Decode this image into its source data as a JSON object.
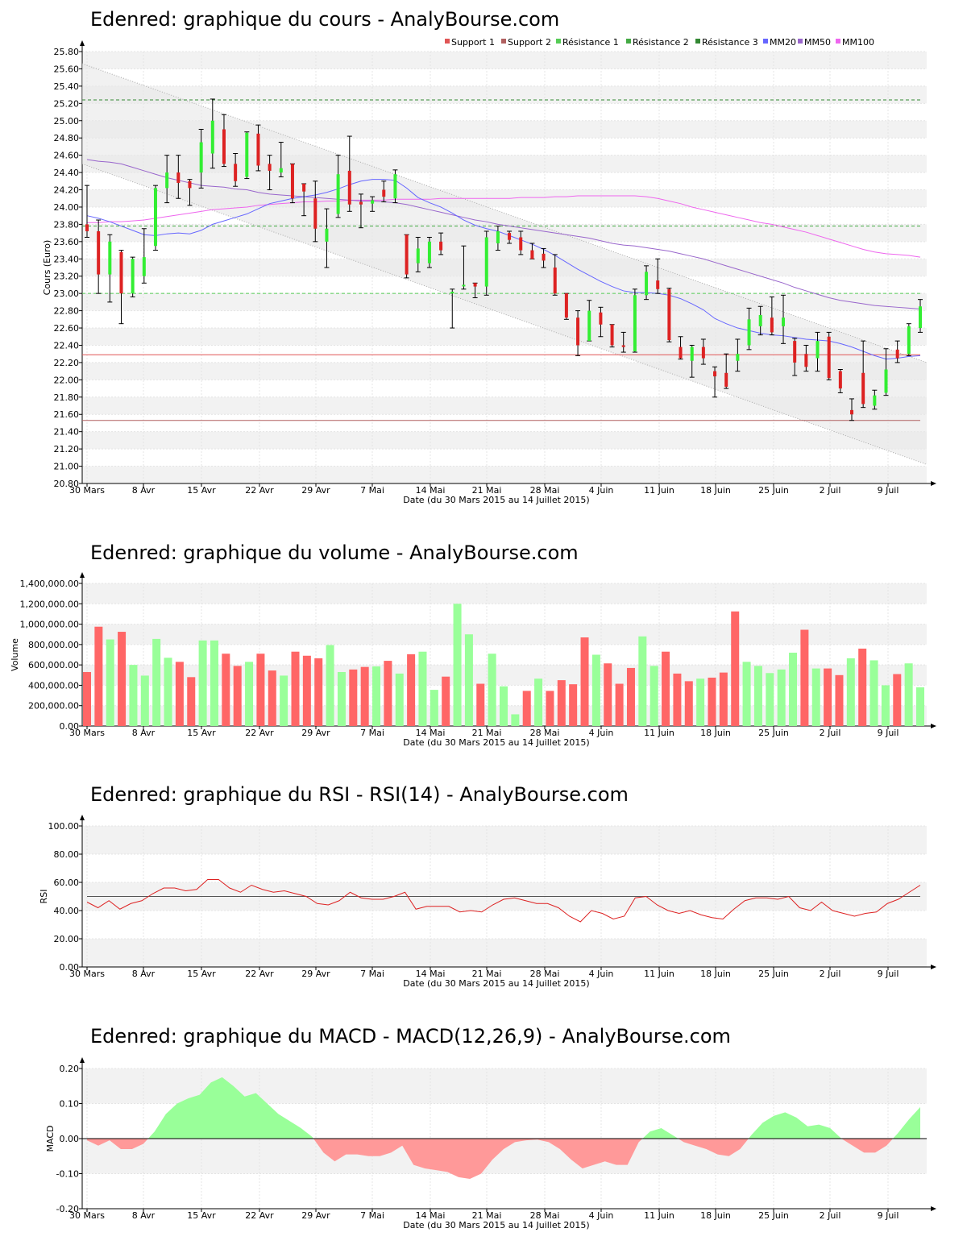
{
  "colors": {
    "up": "#33ee33",
    "down": "#dd2222",
    "vol_up": "#99ff99",
    "vol_down": "#ff6666",
    "mm20": "#6666ff",
    "mm50": "#9966cc",
    "mm100": "#ee66ee",
    "support1": "#e05555",
    "support2": "#b06060",
    "res1": "#55cc55",
    "res2": "#44aa44",
    "res3": "#338833",
    "rsi": "#dd2222",
    "macd_pos": "#99ff99",
    "macd_neg": "#ff9999"
  },
  "x_axis": {
    "ticks": [
      "30 Mars",
      "8 Avr",
      "15 Avr",
      "22 Avr",
      "29 Avr",
      "7 Mai",
      "14 Mai",
      "21 Mai",
      "28 Mai",
      "4 Juin",
      "11 Juin",
      "18 Juin",
      "25 Juin",
      "2 Juil",
      "9 Juil"
    ],
    "label": "Date (du 30 Mars 2015 au 14 Juillet 2015)"
  },
  "chart_data": [
    {
      "type": "candlestick",
      "title": "Edenred: graphique du cours - AnalyBourse.com",
      "ylabel": "Cours (Euro)",
      "ylim": [
        20.8,
        25.8
      ],
      "yticks": [
        "25.80",
        "25.60",
        "25.40",
        "25.20",
        "25.00",
        "24.80",
        "24.60",
        "24.40",
        "24.20",
        "24.00",
        "23.80",
        "23.60",
        "23.40",
        "23.20",
        "23.00",
        "22.80",
        "22.60",
        "22.40",
        "22.20",
        "22.00",
        "21.80",
        "21.60",
        "21.40",
        "21.20",
        "21.00",
        "20.80"
      ],
      "legend": [
        "Support 1",
        "Support 2",
        "Résistance 1",
        "Résistance 2",
        "Résistance 3",
        "MM20",
        "MM50",
        "MM100"
      ],
      "levels": {
        "support1": 22.29,
        "support2": 21.53,
        "resistance1": 23.0,
        "resistance2": 23.78,
        "resistance3": 25.24
      },
      "channel": {
        "upper": [
          25.66,
          22.2
        ],
        "lower": [
          24.5,
          21.02
        ]
      },
      "candles": [
        [
          23.8,
          23.72,
          24.25,
          23.65
        ],
        [
          23.72,
          23.22,
          23.85,
          23.0
        ],
        [
          23.22,
          23.6,
          23.68,
          22.9
        ],
        [
          23.48,
          23.0,
          23.5,
          22.65
        ],
        [
          23.0,
          23.4,
          23.42,
          22.96
        ],
        [
          23.2,
          23.42,
          23.75,
          23.12
        ],
        [
          23.55,
          24.22,
          24.25,
          23.5
        ],
        [
          24.22,
          24.4,
          24.6,
          24.05
        ],
        [
          24.4,
          24.28,
          24.6,
          24.1
        ],
        [
          24.3,
          24.22,
          24.32,
          24.02
        ],
        [
          24.4,
          24.75,
          24.9,
          24.22
        ],
        [
          24.62,
          25.0,
          25.25,
          24.45
        ],
        [
          24.9,
          24.5,
          25.07,
          24.47
        ],
        [
          24.5,
          24.3,
          24.62,
          24.24
        ],
        [
          24.35,
          24.86,
          24.87,
          24.33
        ],
        [
          24.85,
          24.48,
          24.95,
          24.42
        ],
        [
          24.5,
          24.42,
          24.6,
          24.2
        ],
        [
          24.4,
          24.45,
          24.75,
          24.35
        ],
        [
          24.5,
          24.1,
          24.5,
          24.05
        ],
        [
          24.27,
          24.18,
          24.27,
          23.9
        ],
        [
          24.1,
          23.75,
          24.3,
          23.6
        ],
        [
          23.6,
          23.75,
          23.98,
          23.3
        ],
        [
          23.92,
          24.38,
          24.6,
          23.88
        ],
        [
          24.42,
          24.03,
          24.82,
          23.95
        ],
        [
          24.06,
          24.03,
          24.15,
          23.76
        ],
        [
          24.04,
          24.08,
          24.12,
          23.95
        ],
        [
          24.2,
          24.12,
          24.3,
          24.06
        ],
        [
          24.1,
          24.38,
          24.43,
          24.05
        ],
        [
          23.68,
          23.22,
          23.68,
          23.18
        ],
        [
          23.35,
          23.52,
          23.65,
          23.25
        ],
        [
          23.35,
          23.6,
          23.65,
          23.3
        ],
        [
          23.6,
          23.5,
          23.7,
          23.45
        ],
        [
          23.0,
          23.02,
          23.05,
          22.6
        ],
        [
          23.1,
          23.1,
          23.55,
          23.05
        ],
        [
          23.12,
          23.08,
          23.12,
          22.95
        ],
        [
          23.08,
          23.65,
          23.72,
          22.98
        ],
        [
          23.58,
          23.72,
          23.78,
          23.5
        ],
        [
          23.7,
          23.62,
          23.72,
          23.58
        ],
        [
          23.65,
          23.5,
          23.72,
          23.45
        ],
        [
          23.5,
          23.4,
          23.58,
          23.4
        ],
        [
          23.46,
          23.38,
          23.52,
          23.3
        ],
        [
          23.3,
          23.0,
          23.45,
          22.98
        ],
        [
          23.0,
          22.72,
          23.0,
          22.7
        ],
        [
          22.72,
          22.4,
          22.8,
          22.28
        ],
        [
          22.45,
          22.8,
          22.92,
          22.45
        ],
        [
          22.78,
          22.64,
          22.84,
          22.5
        ],
        [
          22.64,
          22.4,
          22.64,
          22.38
        ],
        [
          22.4,
          22.38,
          22.55,
          22.32
        ],
        [
          22.33,
          22.98,
          23.05,
          22.32
        ],
        [
          22.98,
          23.25,
          23.32,
          22.93
        ],
        [
          23.15,
          23.05,
          23.4,
          23.0
        ],
        [
          23.05,
          22.46,
          23.06,
          22.44
        ],
        [
          22.38,
          22.25,
          22.5,
          22.24
        ],
        [
          22.22,
          22.38,
          22.4,
          22.03
        ],
        [
          22.38,
          22.25,
          22.47,
          22.18
        ],
        [
          22.1,
          22.04,
          22.15,
          21.8
        ],
        [
          22.08,
          21.92,
          22.3,
          21.9
        ],
        [
          22.22,
          22.3,
          22.47,
          22.1
        ],
        [
          22.4,
          22.7,
          22.83,
          22.35
        ],
        [
          22.62,
          22.75,
          22.85,
          22.52
        ],
        [
          22.72,
          22.55,
          22.96,
          22.52
        ],
        [
          22.62,
          22.72,
          22.98,
          22.42
        ],
        [
          22.45,
          22.2,
          22.48,
          22.05
        ],
        [
          22.3,
          22.15,
          22.4,
          22.1
        ],
        [
          22.25,
          22.45,
          22.55,
          22.1
        ],
        [
          22.5,
          22.02,
          22.55,
          22.0
        ],
        [
          22.1,
          21.9,
          22.12,
          21.85
        ],
        [
          21.65,
          21.6,
          21.78,
          21.53
        ],
        [
          22.08,
          21.72,
          22.45,
          21.68
        ],
        [
          21.7,
          21.82,
          21.88,
          21.66
        ],
        [
          21.85,
          22.12,
          22.36,
          21.82
        ],
        [
          22.35,
          22.25,
          22.45,
          22.2
        ],
        [
          22.3,
          22.62,
          22.65,
          22.28
        ],
        [
          22.6,
          22.85,
          22.93,
          22.55
        ]
      ],
      "mm20": [
        23.9,
        23.87,
        23.83,
        23.78,
        23.73,
        23.68,
        23.67,
        23.69,
        23.7,
        23.69,
        23.73,
        23.8,
        23.84,
        23.88,
        23.92,
        23.98,
        24.04,
        24.07,
        24.1,
        24.12,
        24.14,
        24.17,
        24.21,
        24.26,
        24.3,
        24.32,
        24.32,
        24.31,
        24.22,
        24.11,
        24.05,
        24.0,
        23.93,
        23.85,
        23.79,
        23.75,
        23.72,
        23.67,
        23.62,
        23.57,
        23.51,
        23.44,
        23.36,
        23.28,
        23.21,
        23.14,
        23.08,
        23.03,
        23.01,
        23.01,
        23.0,
        22.98,
        22.94,
        22.88,
        22.81,
        22.71,
        22.65,
        22.6,
        22.57,
        22.54,
        22.52,
        22.51,
        22.49,
        22.47,
        22.46,
        22.45,
        22.42,
        22.38,
        22.33,
        22.28,
        22.24,
        22.25,
        22.27,
        22.28
      ],
      "mm50": [
        24.55,
        24.53,
        24.52,
        24.5,
        24.46,
        24.42,
        24.38,
        24.34,
        24.31,
        24.28,
        24.25,
        24.24,
        24.23,
        24.21,
        24.2,
        24.17,
        24.15,
        24.14,
        24.13,
        24.12,
        24.11,
        24.1,
        24.09,
        24.08,
        24.07,
        24.07,
        24.06,
        24.05,
        24.03,
        24.0,
        23.97,
        23.94,
        23.91,
        23.88,
        23.85,
        23.83,
        23.8,
        23.78,
        23.76,
        23.74,
        23.72,
        23.7,
        23.68,
        23.66,
        23.64,
        23.61,
        23.58,
        23.56,
        23.55,
        23.53,
        23.51,
        23.49,
        23.46,
        23.43,
        23.4,
        23.36,
        23.32,
        23.28,
        23.24,
        23.2,
        23.16,
        23.12,
        23.07,
        23.03,
        22.99,
        22.95,
        22.92,
        22.9,
        22.88,
        22.86,
        22.85,
        22.84,
        22.83,
        22.82
      ],
      "mm100": [
        23.82,
        23.82,
        23.83,
        23.83,
        23.84,
        23.85,
        23.87,
        23.89,
        23.91,
        23.93,
        23.95,
        23.97,
        23.98,
        23.99,
        24.0,
        24.02,
        24.03,
        24.04,
        24.05,
        24.06,
        24.06,
        24.07,
        24.07,
        24.08,
        24.08,
        24.08,
        24.08,
        24.09,
        24.09,
        24.09,
        24.09,
        24.1,
        24.1,
        24.1,
        24.1,
        24.1,
        24.1,
        24.1,
        24.11,
        24.11,
        24.11,
        24.12,
        24.12,
        24.13,
        24.13,
        24.13,
        24.13,
        24.13,
        24.13,
        24.12,
        24.1,
        24.07,
        24.04,
        24.0,
        23.97,
        23.94,
        23.91,
        23.88,
        23.85,
        23.82,
        23.8,
        23.77,
        23.74,
        23.71,
        23.67,
        23.63,
        23.59,
        23.55,
        23.51,
        23.48,
        23.46,
        23.45,
        23.44,
        23.42
      ]
    },
    {
      "type": "bar",
      "title": "Edenred: graphique du volume - AnalyBourse.com",
      "ylabel": "Volume",
      "ylim": [
        0,
        1400000
      ],
      "yticks": [
        "1,400,000.00",
        "1,200,000.00",
        "1,000,000.00",
        "800,000.00",
        "600,000.00",
        "400,000.00",
        "200,000.00",
        "0.00"
      ],
      "values": [
        530000,
        975000,
        850000,
        925000,
        600000,
        495000,
        855000,
        670000,
        630000,
        480000,
        840000,
        840000,
        710000,
        590000,
        630000,
        710000,
        545000,
        495000,
        730000,
        690000,
        665000,
        795000,
        530000,
        555000,
        580000,
        585000,
        640000,
        515000,
        705000,
        730000,
        355000,
        485000,
        1200000,
        900000,
        415000,
        710000,
        390000,
        115000,
        345000,
        465000,
        345000,
        450000,
        410000,
        870000,
        700000,
        615000,
        415000,
        570000,
        880000,
        590000,
        730000,
        515000,
        440000,
        465000,
        475000,
        525000,
        1125000,
        630000,
        590000,
        520000,
        555000,
        720000,
        945000,
        565000,
        565000,
        500000,
        665000,
        760000,
        645000,
        400000,
        510000,
        615000,
        380000
      ],
      "up": [
        false,
        false,
        true,
        false,
        true,
        true,
        true,
        true,
        false,
        false,
        true,
        true,
        false,
        false,
        true,
        false,
        false,
        true,
        false,
        false,
        false,
        true,
        true,
        false,
        false,
        true,
        false,
        true,
        false,
        true,
        true,
        false,
        true,
        true,
        false,
        true,
        true,
        true,
        false,
        true,
        false,
        false,
        false,
        false,
        true,
        false,
        false,
        false,
        true,
        true,
        false,
        false,
        false,
        true,
        false,
        false,
        false,
        true,
        true,
        true,
        true,
        true,
        false,
        true,
        false,
        false,
        true,
        false,
        true,
        true,
        false,
        true,
        true
      ]
    },
    {
      "type": "line",
      "title": "Edenred: graphique du RSI - RSI(14) - AnalyBourse.com",
      "ylabel": "RSI",
      "ylim": [
        0,
        100
      ],
      "yticks": [
        "100.00",
        "80.00",
        "60.00",
        "40.00",
        "20.00",
        "0.00"
      ],
      "reference": 50,
      "values": [
        46,
        42,
        47,
        41,
        45,
        47,
        52,
        56,
        56,
        54,
        55,
        62,
        62,
        56,
        53,
        58,
        55,
        53,
        54,
        52,
        50,
        45,
        44,
        47,
        53,
        49,
        48,
        48,
        50,
        53,
        41,
        43,
        43,
        43,
        39,
        40,
        39,
        44,
        48,
        49,
        47,
        45,
        45,
        42,
        36,
        32,
        40,
        38,
        34,
        36,
        49,
        50,
        44,
        40,
        38,
        40,
        37,
        35,
        34,
        41,
        47,
        49,
        49,
        48,
        50,
        42,
        40,
        46,
        40,
        38,
        36,
        38,
        39,
        45,
        48,
        53,
        58
      ]
    },
    {
      "type": "area",
      "title": "Edenred: graphique du MACD - MACD(12,26,9) - AnalyBourse.com",
      "ylabel": "MACD",
      "ylim": [
        -0.2,
        0.2
      ],
      "yticks": [
        "0.20",
        "0.10",
        "0.00",
        "-0.10",
        "-0.20"
      ],
      "values": [
        -0.005,
        -0.02,
        -0.005,
        -0.03,
        -0.03,
        -0.015,
        0.02,
        0.07,
        0.1,
        0.115,
        0.125,
        0.16,
        0.175,
        0.15,
        0.12,
        0.13,
        0.1,
        0.07,
        0.05,
        0.03,
        0.005,
        -0.04,
        -0.065,
        -0.045,
        -0.045,
        -0.05,
        -0.05,
        -0.04,
        -0.02,
        -0.075,
        -0.085,
        -0.09,
        -0.095,
        -0.11,
        -0.115,
        -0.1,
        -0.06,
        -0.03,
        -0.01,
        -0.005,
        -0.003,
        -0.01,
        -0.03,
        -0.06,
        -0.085,
        -0.075,
        -0.065,
        -0.075,
        -0.075,
        -0.01,
        0.02,
        0.03,
        0.01,
        -0.01,
        -0.02,
        -0.03,
        -0.045,
        -0.05,
        -0.03,
        0.01,
        0.045,
        0.065,
        0.075,
        0.06,
        0.035,
        0.04,
        0.03,
        0.0,
        -0.02,
        -0.04,
        -0.04,
        -0.02,
        0.015,
        0.055,
        0.09
      ]
    }
  ]
}
